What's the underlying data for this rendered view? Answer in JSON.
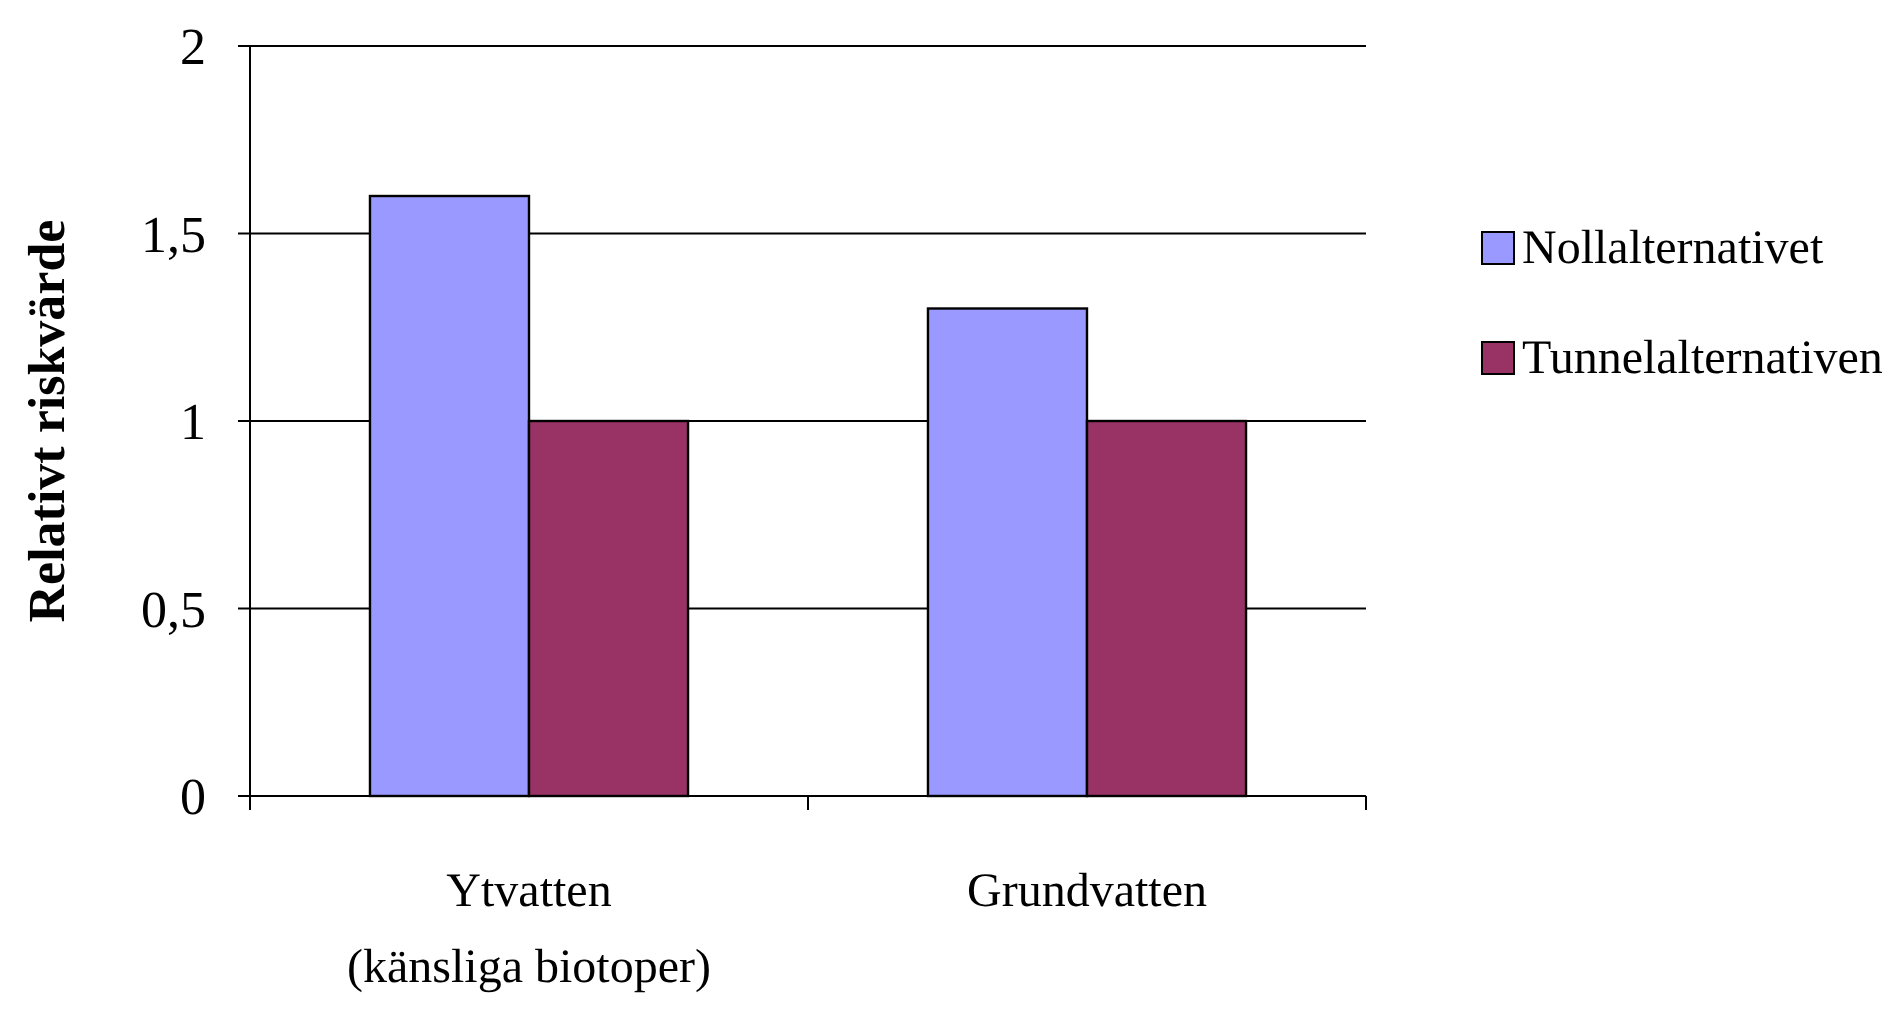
{
  "chart_data": {
    "type": "bar",
    "ylabel": "Relativt riskvärde",
    "categories": [
      "Ytvatten\n(känsliga biotoper)",
      "Grundvatten"
    ],
    "series": [
      {
        "name": "Nollalternativet",
        "color": "#9999ff",
        "values": [
          1.6,
          1.3
        ]
      },
      {
        "name": "Tunnelalternativen",
        "color": "#993366",
        "values": [
          1.0,
          1.0
        ]
      }
    ],
    "ylim": [
      0,
      2
    ],
    "yticks": [
      0,
      {
        "value": 0.5,
        "label": "0,5"
      },
      1,
      {
        "value": 1.5,
        "label": "1,5"
      },
      2
    ],
    "grid": "y",
    "legend": "right"
  }
}
